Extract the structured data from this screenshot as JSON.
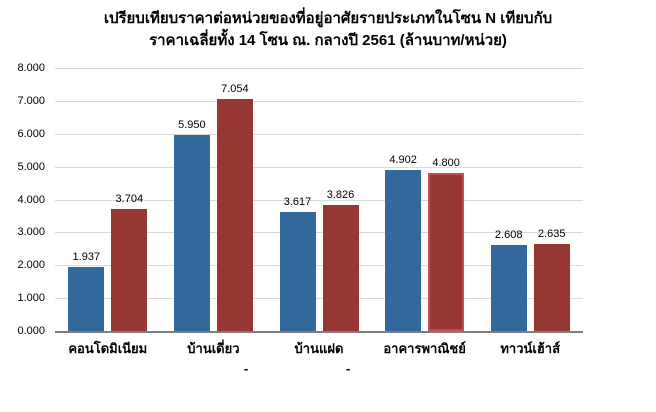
{
  "chart_data": {
    "type": "bar",
    "title_lines": [
      "เปรียบเทียบราคาต่อหน่วยของที่อยู่อาศัยรายประเภทในโซน N เทียบกับ",
      "ราคาเฉลี่ยทั้ง 14 โซน ณ. กลางปี 2561 (ล้านบาท/หน่วย)"
    ],
    "title": "เปรียบเทียบราคาต่อหน่วยของที่อยู่อาศัยรายประเภทในโซน N เทียบกับ ราคาเฉลี่ยทั้ง 14 โซน ณ. กลางปี 2561 (ล้านบาท/หน่วย)",
    "categories": [
      "คอนโดมิเนียม",
      "บ้านเดี่ยว",
      "บ้านแฝด",
      "อาคารพาณิชย์",
      "ทาวน์เฮ้าส์"
    ],
    "series": [
      {
        "name": "",
        "color": "#33689c",
        "values": [
          1.937,
          5.95,
          3.617,
          4.902,
          2.608
        ]
      },
      {
        "name": "",
        "color": "#963734",
        "values": [
          3.704,
          7.054,
          3.826,
          4.8,
          2.635
        ]
      }
    ],
    "ylim": [
      0,
      8
    ],
    "ytick_step": 1,
    "ytick_decimals": 3,
    "value_label_decimals": 3,
    "grid": true,
    "legend_position": "bottom",
    "legend_marks": [
      "-",
      "-"
    ],
    "highlighted": {
      "series_index": 1,
      "category_index": 3
    },
    "colors": {
      "grid": "#d9d9d9",
      "axis": "#7f7f7f",
      "highlight_border": "#c0504d",
      "text": "#000000"
    }
  }
}
